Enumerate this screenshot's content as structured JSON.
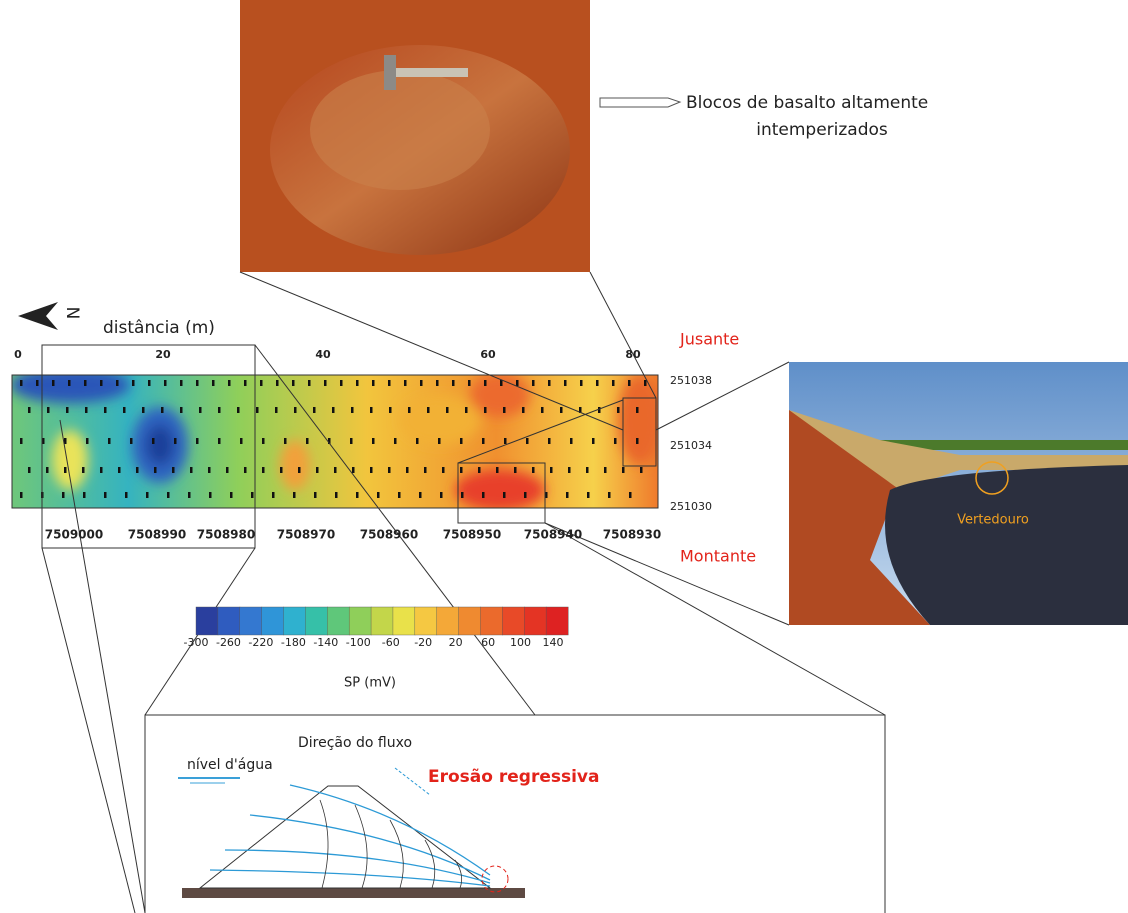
{
  "photo_caption": {
    "lines": [
      "Blocos de basalto altamente",
      "intemperizados"
    ]
  },
  "north_label": "N",
  "map": {
    "distance_label": "distância (m)",
    "distance_ticks": [
      "0",
      "20",
      "40",
      "60",
      "80"
    ],
    "northing_ticks": [
      "251038",
      "251034",
      "251030"
    ],
    "easting_ticks": [
      "7509000",
      "7508990",
      "7508980",
      "7508970",
      "7508960",
      "7508950",
      "7508940",
      "7508930"
    ],
    "downstream": "Jusante",
    "upstream": "Montante"
  },
  "photo_label": "Vertedouro",
  "colorbar": {
    "ticks": [
      "-300",
      "-260",
      "-220",
      "-180",
      "-140",
      "-100",
      "-60",
      "-20",
      "20",
      "60",
      "100",
      "140"
    ],
    "label": "SP (mV)"
  },
  "diagram": {
    "water_level": "nível d'água",
    "flow_direction": "Direção do fluxo",
    "erosion": "Erosão regressiva"
  }
}
